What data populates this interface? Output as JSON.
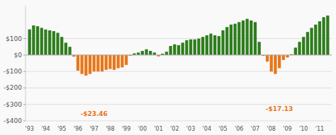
{
  "chart_data": {
    "type": "bar",
    "categories": [
      "'93",
      null,
      null,
      null,
      "'94",
      null,
      null,
      null,
      "'95",
      null,
      null,
      null,
      "'96",
      null,
      null,
      null,
      "'97",
      null,
      null,
      null,
      "'98",
      null,
      null,
      null,
      "'99",
      null,
      null,
      null,
      "'00",
      null,
      null,
      null,
      "'01",
      null,
      null,
      null,
      "'02",
      null,
      null,
      null,
      "'03",
      null,
      null,
      null,
      "'04",
      null,
      null,
      null,
      "'05",
      null,
      null,
      null,
      "'06",
      null,
      null,
      null,
      "'07",
      null,
      null,
      null,
      "'08",
      null,
      null,
      null,
      "'09",
      null,
      null,
      null,
      "'10",
      null,
      null,
      null,
      "'11",
      null,
      null
    ],
    "values": [
      156,
      180,
      175,
      165,
      155,
      150,
      145,
      135,
      110,
      75,
      50,
      -10,
      -95,
      -115,
      -125,
      -115,
      -100,
      -100,
      -100,
      -90,
      -85,
      -90,
      -80,
      -75,
      -60,
      -5,
      10,
      15,
      25,
      35,
      25,
      15,
      -8,
      8,
      20,
      55,
      65,
      60,
      75,
      90,
      95,
      95,
      100,
      110,
      120,
      130,
      120,
      115,
      150,
      170,
      185,
      190,
      200,
      210,
      220,
      210,
      200,
      80,
      -5,
      -40,
      -100,
      -115,
      -80,
      -30,
      -15,
      5,
      45,
      80,
      110,
      140,
      165,
      185,
      205,
      230,
      240
    ],
    "colors": [
      "#2e7d1e",
      "#2e7d1e",
      "#2e7d1e",
      "#2e7d1e",
      "#2e7d1e",
      "#2e7d1e",
      "#2e7d1e",
      "#2e7d1e",
      "#2e7d1e",
      "#2e7d1e",
      "#2e7d1e",
      "#e8771a",
      "#e8771a",
      "#e8771a",
      "#e8771a",
      "#e8771a",
      "#e8771a",
      "#e8771a",
      "#e8771a",
      "#e8771a",
      "#e8771a",
      "#e8771a",
      "#e8771a",
      "#e8771a",
      "#e8771a",
      "#e8771a",
      "#2e7d1e",
      "#2e7d1e",
      "#2e7d1e",
      "#2e7d1e",
      "#2e7d1e",
      "#2e7d1e",
      "#e8771a",
      "#2e7d1e",
      "#2e7d1e",
      "#2e7d1e",
      "#2e7d1e",
      "#2e7d1e",
      "#2e7d1e",
      "#2e7d1e",
      "#2e7d1e",
      "#2e7d1e",
      "#2e7d1e",
      "#2e7d1e",
      "#2e7d1e",
      "#2e7d1e",
      "#2e7d1e",
      "#2e7d1e",
      "#2e7d1e",
      "#2e7d1e",
      "#2e7d1e",
      "#2e7d1e",
      "#2e7d1e",
      "#2e7d1e",
      "#2e7d1e",
      "#2e7d1e",
      "#2e7d1e",
      "#2e7d1e",
      "#e8771a",
      "#e8771a",
      "#e8771a",
      "#e8771a",
      "#e8771a",
      "#e8771a",
      "#e8771a",
      "#2e7d1e",
      "#2e7d1e",
      "#2e7d1e",
      "#2e7d1e",
      "#2e7d1e",
      "#2e7d1e",
      "#2e7d1e",
      "#2e7d1e",
      "#2e7d1e",
      "#2e7d1e"
    ],
    "ylim": [
      -400,
      300
    ],
    "yticks": [
      {
        "value": 100,
        "label": "$100"
      },
      {
        "value": 0,
        "label": "$0"
      },
      {
        "value": -100,
        "label": "-$100"
      },
      {
        "value": -200,
        "label": "-$200"
      },
      {
        "value": -300,
        "label": "-$300"
      },
      {
        "value": -400,
        "label": "-$400"
      }
    ],
    "grid": true,
    "annotations": [
      {
        "text": "-$23.46",
        "x": 16,
        "y": -370,
        "color": "#e8771a"
      },
      {
        "text": "-$17.13",
        "x": 62,
        "y": -340,
        "color": "#e8771a"
      }
    ]
  }
}
